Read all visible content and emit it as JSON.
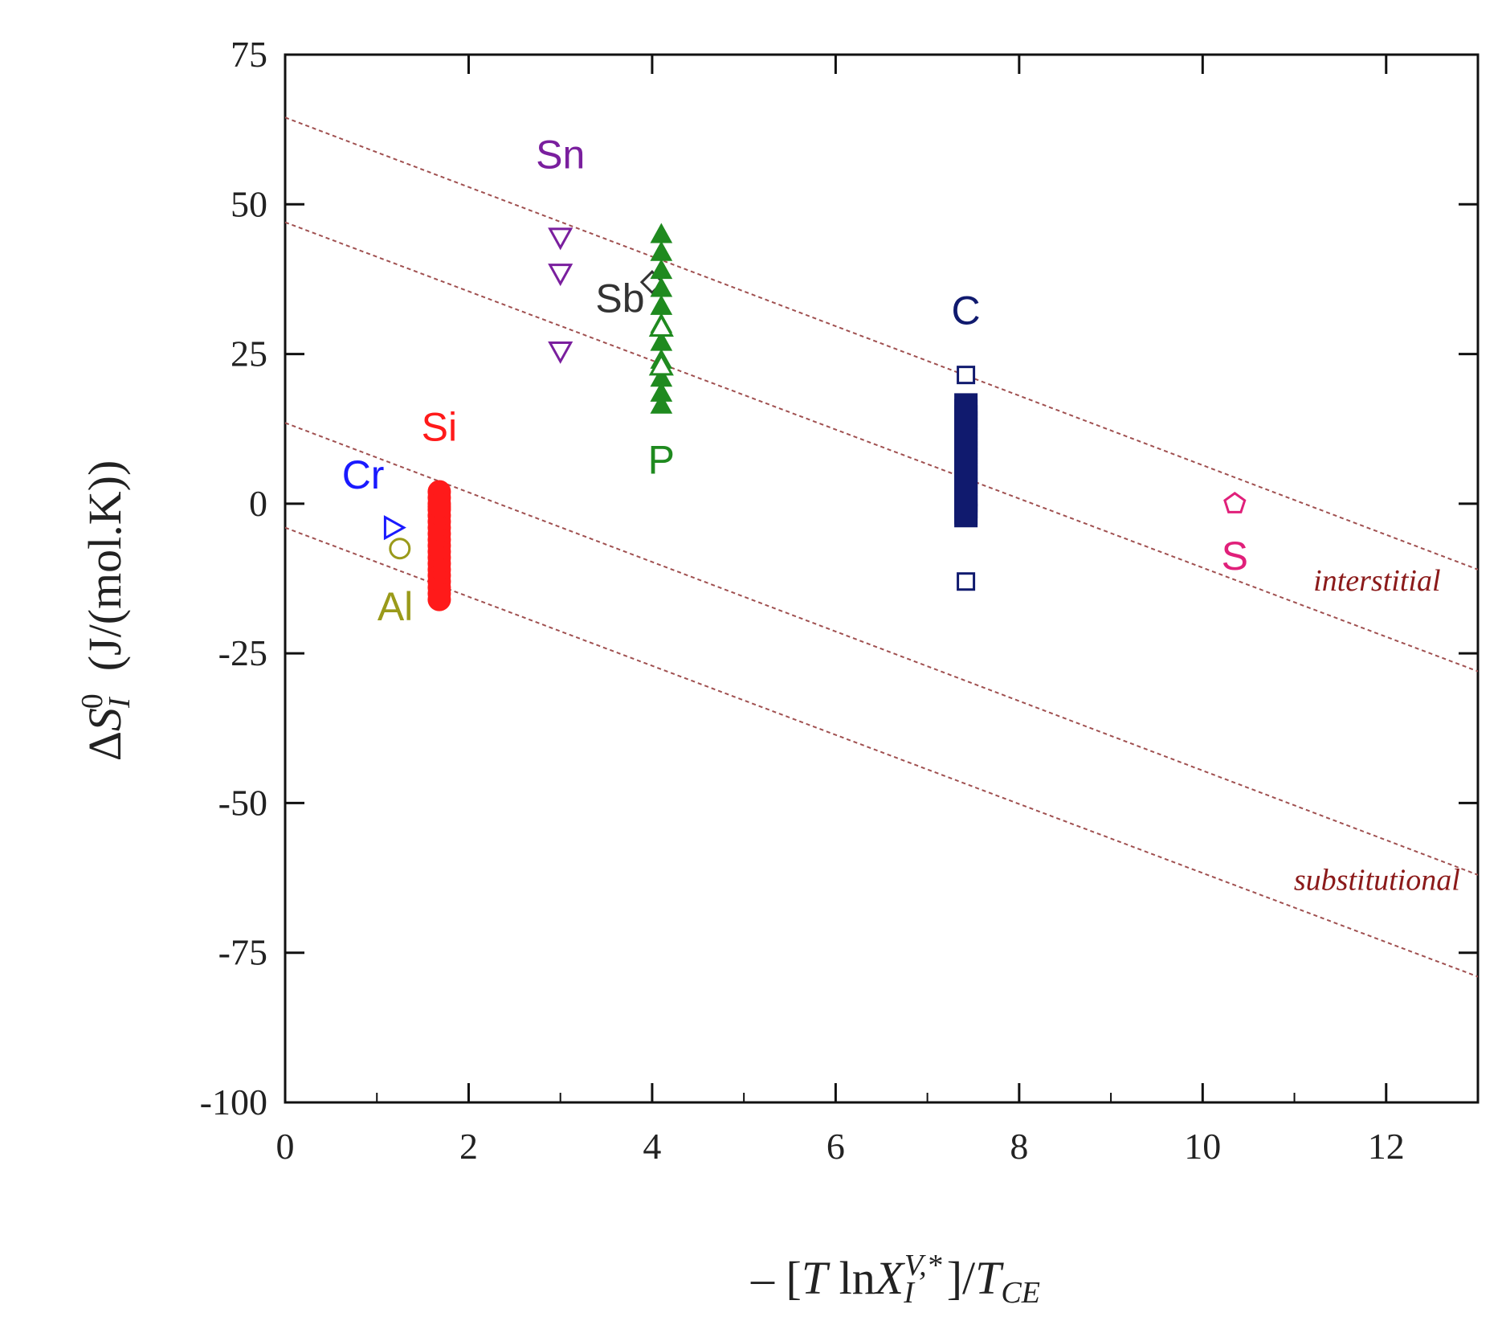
{
  "chart_data": {
    "type": "scatter",
    "title": "",
    "xlabel": "− [T lnX_I^{V,*}]/T_CE",
    "xlabel_parts": {
      "prefix": "– [",
      "T": "T",
      "ln": " ln",
      "X": "X",
      "X_sub": "I",
      "X_sup": "V,*",
      "mid": "]/",
      "T2": "T",
      "T2_sub": "CE"
    },
    "ylabel": "ΔS_I^0 (J/(mol.K))",
    "ylabel_parts": {
      "delta": "Δ",
      "S": "S",
      "S_sub": "I",
      "S_sup": "0",
      "units": "(J/(mol.K))"
    },
    "xlim": [
      0,
      13
    ],
    "ylim": [
      -100,
      75
    ],
    "x_ticks": [
      0,
      2,
      4,
      6,
      8,
      10,
      12
    ],
    "y_ticks": [
      75,
      50,
      25,
      0,
      -25,
      -50,
      -75,
      -100
    ],
    "x_tick_labels": [
      "0",
      "2",
      "4",
      "6",
      "8",
      "10",
      "12"
    ],
    "y_tick_labels": [
      "75",
      "50",
      "25",
      "0",
      "-25",
      "-50",
      "-75",
      "-100"
    ],
    "grid": false,
    "reference_lines": [
      {
        "x": [
          0,
          13
        ],
        "y": [
          64.5,
          -11
        ],
        "group": "interstitial"
      },
      {
        "x": [
          0,
          13
        ],
        "y": [
          47,
          -28
        ],
        "group": "interstitial"
      },
      {
        "x": [
          0,
          13
        ],
        "y": [
          13.5,
          -62
        ],
        "group": "substitutional"
      },
      {
        "x": [
          0,
          13
        ],
        "y": [
          -4,
          -79
        ],
        "group": "substitutional"
      }
    ],
    "line_labels": [
      {
        "text": "interstitial",
        "x": 11.9,
        "y": -14.5
      },
      {
        "text": "substitutional",
        "x": 11.9,
        "y": -64.5
      }
    ],
    "series": [
      {
        "name": "Sn",
        "color": "#7a1f9e",
        "marker": "triangle-down-open",
        "x": [
          3.0,
          3.0,
          3.0
        ],
        "y": [
          44.5,
          38.5,
          25.5
        ],
        "label_pos": [
          3.0,
          56
        ]
      },
      {
        "name": "Sb",
        "color": "#333333",
        "marker": "diamond-open",
        "x": [
          4.0
        ],
        "y": [
          37.0
        ],
        "label_pos": [
          3.65,
          32
        ]
      },
      {
        "name": "P",
        "color": "#1f8a1f",
        "marker": "triangle-up-filled",
        "x": [
          4.1,
          4.1,
          4.1,
          4.1,
          4.1,
          4.1,
          4.1,
          4.1,
          4.1,
          4.1,
          4.1
        ],
        "y": [
          45,
          42,
          39,
          36,
          33,
          30,
          27,
          24,
          21,
          18.5,
          16.5
        ],
        "label_pos": [
          4.1,
          5
        ]
      },
      {
        "name": "P (open)",
        "color": "#1f8a1f",
        "marker": "triangle-up-open",
        "x": [
          4.1,
          4.1
        ],
        "y": [
          29.5,
          23.0
        ],
        "label_pos": null
      },
      {
        "name": "Si",
        "color": "#ff1a1a",
        "marker": "circle-filled",
        "x": [
          1.68,
          1.68,
          1.68,
          1.68,
          1.68,
          1.68,
          1.68,
          1.68,
          1.68,
          1.68,
          1.68,
          1.68,
          1.68,
          1.68,
          1.68,
          1.68,
          1.68,
          1.68,
          1.68,
          1.68
        ],
        "y": [
          2,
          1,
          0,
          -1,
          -2,
          -3,
          -4,
          -5,
          -6,
          -7,
          -8,
          -9,
          -10,
          -11,
          -12,
          -13,
          -14,
          -15,
          -16,
          -0.5
        ],
        "label_pos": [
          1.68,
          10.5
        ]
      },
      {
        "name": "Cr",
        "color": "#1a1aff",
        "marker": "triangle-right-open",
        "x": [
          1.18
        ],
        "y": [
          -4.0
        ],
        "label_pos": [
          0.85,
          2.5
        ]
      },
      {
        "name": "Al",
        "color": "#9a9a1a",
        "marker": "circle-open",
        "x": [
          1.25
        ],
        "y": [
          -7.5
        ],
        "label_pos": [
          1.2,
          -19.5
        ]
      },
      {
        "name": "C",
        "color": "#101a6e",
        "marker": "square-filled",
        "x": [
          7.42,
          7.42,
          7.42,
          7.42,
          7.42,
          7.42,
          7.42,
          7.42,
          7.42,
          7.42,
          7.42,
          7.42,
          7.42,
          7.42,
          7.42,
          7.42,
          7.42,
          7.42,
          7.42,
          7.42
        ],
        "y": [
          16.5,
          15.5,
          14.5,
          13.5,
          12.5,
          11.5,
          10.5,
          9.5,
          8.5,
          7.5,
          6.5,
          5.5,
          4.5,
          3.5,
          2.5,
          1.5,
          0.5,
          -0.5,
          -1.5,
          -2.0
        ],
        "label_pos": [
          7.42,
          30
        ]
      },
      {
        "name": "C (open)",
        "color": "#101a6e",
        "marker": "square-open",
        "x": [
          7.42,
          7.42
        ],
        "y": [
          21.5,
          -13.0
        ],
        "label_pos": null
      },
      {
        "name": "S",
        "color": "#e0207a",
        "marker": "pentagon-open",
        "x": [
          10.35
        ],
        "y": [
          0.0
        ],
        "label_pos": [
          10.35,
          -11
        ]
      }
    ]
  }
}
